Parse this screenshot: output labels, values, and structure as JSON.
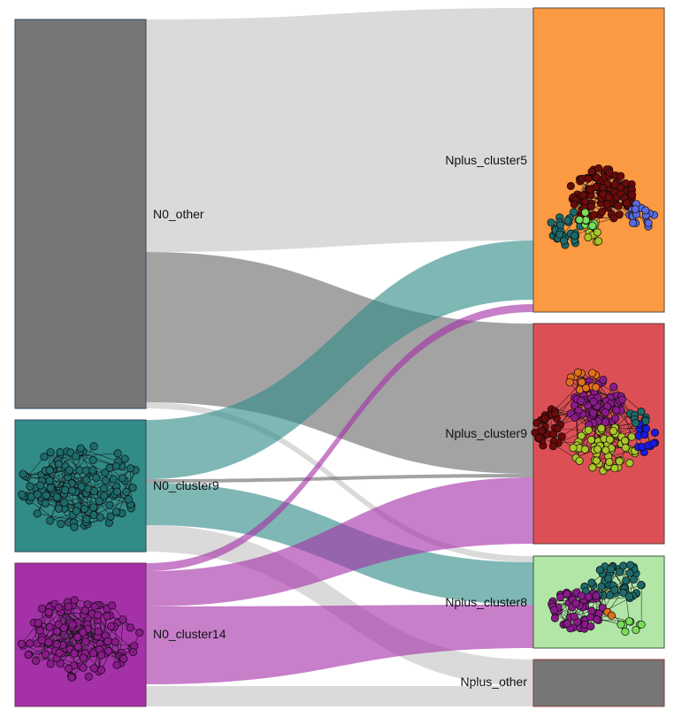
{
  "diagram": {
    "type": "sankey",
    "source_nodes": [
      {
        "id": "N0_other",
        "label": "N0_other",
        "color": "#767676",
        "border": "#2d4a60",
        "graphic": "none"
      },
      {
        "id": "N0_cluster9",
        "label": "N0_cluster9",
        "color": "#318b87",
        "border": "#2d4a60",
        "graphic": "teal-network"
      },
      {
        "id": "N0_cluster14",
        "label": "N0_cluster14",
        "color": "#a431a8",
        "border": "#6b2a5c",
        "graphic": "purple-network"
      }
    ],
    "target_nodes": [
      {
        "id": "Nplus_cluster5",
        "label": "Nplus_cluster5",
        "color": "#fb9a42",
        "border": "#5a4a3a",
        "graphic": "mixed-network"
      },
      {
        "id": "Nplus_cluster9",
        "label": "Nplus_cluster9",
        "color": "#dc5055",
        "border": "#5a3a3a",
        "graphic": "mixed-network"
      },
      {
        "id": "Nplus_cluster8",
        "label": "Nplus_cluster8",
        "color": "#b1e6a7",
        "border": "#3a5a3a",
        "graphic": "mixed-network"
      },
      {
        "id": "Nplus_other",
        "label": "Nplus_other",
        "color": "#767676",
        "border": "#8a3a3a",
        "graphic": "none"
      }
    ],
    "flows": [
      {
        "from": "N0_other",
        "to": "Nplus_cluster5",
        "color": "#c4c4c4"
      },
      {
        "from": "N0_other",
        "to": "Nplus_cluster9",
        "color": "#6a6a6a"
      },
      {
        "from": "N0_other",
        "to": "Nplus_cluster8",
        "color": "#c4c4c4"
      },
      {
        "from": "N0_cluster9",
        "to": "Nplus_cluster5",
        "color": "#318b87"
      },
      {
        "from": "N0_cluster9",
        "to": "Nplus_cluster9",
        "color": "#6a6a6a"
      },
      {
        "from": "N0_cluster9",
        "to": "Nplus_cluster8",
        "color": "#318b87"
      },
      {
        "from": "N0_cluster9",
        "to": "Nplus_other",
        "color": "#c4c4c4"
      },
      {
        "from": "N0_cluster14",
        "to": "Nplus_cluster5",
        "color": "#a431a8"
      },
      {
        "from": "N0_cluster14",
        "to": "Nplus_cluster9",
        "color": "#a431a8"
      },
      {
        "from": "N0_cluster14",
        "to": "Nplus_cluster8",
        "color": "#a431a8"
      },
      {
        "from": "N0_cluster14",
        "to": "Nplus_other",
        "color": "#c4c4c4"
      }
    ],
    "network_colors": {
      "teal": "#1d6a6a",
      "purple": "#8a1a8a",
      "darkred": "#6a0a0a",
      "blue": "#5a6ae0",
      "green": "#7add5a",
      "yellowgreen": "#aac42a",
      "orange": "#e0701a"
    }
  }
}
